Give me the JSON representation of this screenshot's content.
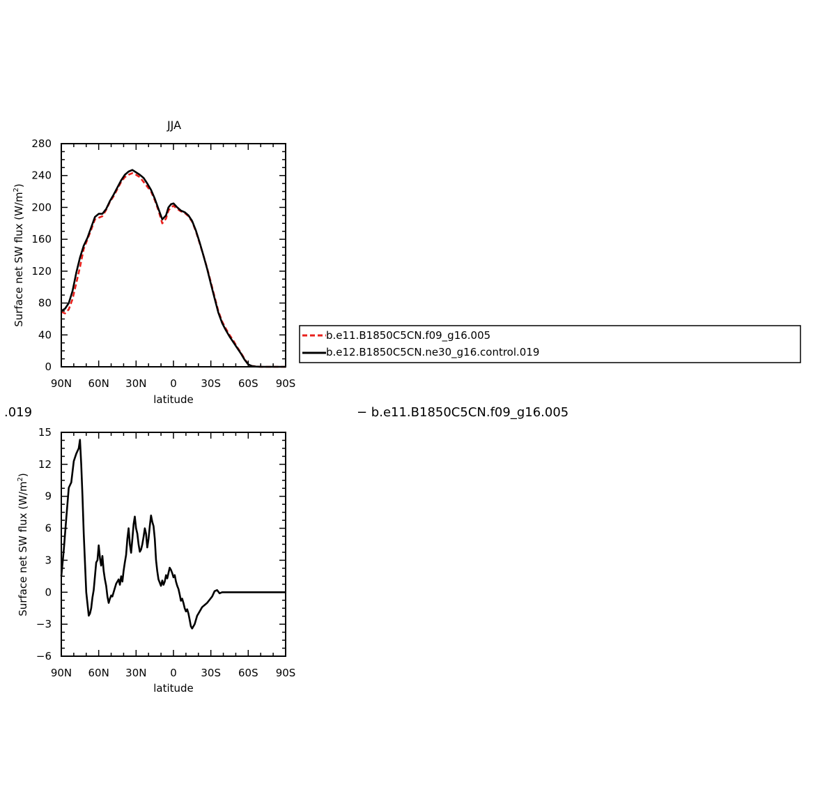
{
  "chart_data": [
    {
      "type": "line",
      "title": "JJA",
      "xlabel": "latitude",
      "ylabel_main": "Surface net SW flux (W/m",
      "ylabel_sup": "2",
      "ylabel_close": ")",
      "x_ticks": [
        "90N",
        "60N",
        "30N",
        "0",
        "30S",
        "60S",
        "90S"
      ],
      "xlim": [
        90,
        -90
      ],
      "ylim": [
        0,
        280
      ],
      "y_ticks": [
        0,
        40,
        80,
        120,
        160,
        200,
        240,
        280
      ],
      "legend": {
        "placement": "right",
        "entries": [
          "b.e11.B1850C5CN.f09_g16.005",
          "b.e12.B1850C5CN.ne30_g16.control.019"
        ]
      },
      "series": [
        {
          "name": "b.e11.B1850C5CN.f09_g16.005",
          "color": "#e8201c",
          "dash": "dashed",
          "x": [
            90,
            87,
            84,
            81,
            78,
            75,
            72,
            69,
            66,
            63,
            60,
            57,
            54,
            51,
            48,
            45,
            42,
            39,
            36,
            33,
            30,
            27,
            24,
            21,
            18,
            15,
            12,
            9,
            6,
            4,
            2,
            0,
            -3,
            -6,
            -9,
            -12,
            -15,
            -18,
            -21,
            -24,
            -27,
            -30,
            -33,
            -36,
            -39,
            -42,
            -45,
            -48,
            -51,
            -54,
            -57,
            -60,
            -63,
            -66,
            -70,
            -75,
            -80,
            -85,
            -90
          ],
          "y": [
            69,
            67,
            72,
            85,
            105,
            125,
            148,
            160,
            172,
            185,
            187,
            189,
            197,
            207,
            214,
            223,
            232,
            238,
            241,
            243,
            241,
            238,
            232,
            226,
            220,
            209,
            196,
            180,
            186,
            196,
            200,
            202,
            198,
            195,
            193,
            189,
            182,
            170,
            155,
            140,
            124,
            106,
            88,
            70,
            57,
            48,
            40,
            33,
            25,
            18,
            10,
            3,
            1,
            0.5,
            0,
            0,
            0,
            0,
            0
          ]
        },
        {
          "name": "b.e12.B1850C5CN.ne30_g16.control.019",
          "color": "#000000",
          "dash": "solid",
          "x": [
            90,
            87,
            84,
            81,
            78,
            75,
            72,
            69,
            66,
            63,
            60,
            57,
            54,
            51,
            48,
            45,
            42,
            39,
            36,
            33,
            30,
            27,
            24,
            21,
            18,
            15,
            12,
            9,
            6,
            4,
            2,
            0,
            -3,
            -6,
            -9,
            -12,
            -15,
            -18,
            -21,
            -24,
            -27,
            -30,
            -33,
            -36,
            -39,
            -42,
            -45,
            -48,
            -51,
            -54,
            -57,
            -60,
            -63,
            -66,
            -70,
            -75,
            -80,
            -85,
            -90
          ],
          "y": [
            70,
            73,
            80,
            95,
            118,
            137,
            152,
            162,
            175,
            188,
            192,
            192,
            198,
            208,
            216,
            225,
            234,
            241,
            245,
            247,
            244,
            241,
            237,
            230,
            222,
            211,
            198,
            185,
            190,
            200,
            204,
            205,
            200,
            196,
            194,
            190,
            183,
            171,
            156,
            140,
            123,
            104,
            86,
            68,
            55,
            46,
            38,
            31,
            24,
            17,
            9,
            3,
            1,
            0.3,
            0,
            0,
            0,
            0,
            0
          ]
        }
      ]
    },
    {
      "type": "line",
      "title_partial": ".019",
      "legend_partial": "− b.e11.B1850C5CN.f09_g16.005",
      "xlabel": "latitude",
      "ylabel_main": "Surface net SW flux (W/m",
      "ylabel_sup": "2",
      "ylabel_close": ")",
      "x_ticks": [
        "90N",
        "60N",
        "30N",
        "0",
        "30S",
        "60S",
        "90S"
      ],
      "xlim": [
        90,
        -90
      ],
      "ylim": [
        -6,
        15
      ],
      "y_ticks": [
        "−6",
        "−3",
        "0",
        "3",
        "6",
        "9",
        "12",
        "15"
      ],
      "series": [
        {
          "color": "#000000",
          "x": [
            90,
            88,
            86,
            84,
            82,
            80,
            78,
            76,
            75,
            74,
            73,
            72,
            70,
            68,
            67,
            66,
            65,
            64,
            63,
            62,
            61,
            60,
            59,
            58,
            57,
            56,
            55,
            54,
            53,
            52,
            51,
            50,
            49,
            48,
            46,
            44,
            43,
            42,
            41,
            40,
            39,
            38,
            37,
            36,
            35,
            34,
            33,
            32,
            31,
            30,
            29,
            28,
            27,
            26,
            25,
            24,
            23,
            22,
            21,
            20,
            19,
            18,
            17,
            16,
            15,
            14,
            13,
            12,
            11,
            10,
            9,
            8,
            7,
            6,
            5,
            4,
            3,
            2,
            1,
            0,
            -1,
            -2,
            -3,
            -4,
            -5,
            -6,
            -7,
            -8,
            -9,
            -10,
            -11,
            -12,
            -13,
            -14,
            -15,
            -16,
            -17,
            -18,
            -19,
            -20,
            -21,
            -22,
            -23,
            -25,
            -27,
            -29,
            -31,
            -33,
            -35,
            -37,
            -39,
            -41,
            -43,
            -45,
            -47,
            -49,
            -51,
            -53,
            -55,
            -57,
            -59,
            -61,
            -63,
            -65,
            -67,
            -69,
            -71,
            -75,
            -80,
            -85,
            -90
          ],
          "y": [
            1.5,
            4,
            7,
            9.8,
            10.3,
            12.3,
            13,
            13.5,
            14.3,
            12,
            9,
            5.5,
            0,
            -2.2,
            -2,
            -1.5,
            -0.5,
            0.2,
            1.5,
            2.8,
            3.0,
            4.4,
            3.2,
            2.5,
            3.4,
            2.0,
            1.2,
            0.6,
            -0.4,
            -1.0,
            -0.6,
            -0.3,
            -0.4,
            0,
            0.8,
            1.2,
            0.7,
            1.5,
            1.0,
            2.0,
            2.8,
            3.5,
            5.0,
            6.0,
            4.5,
            3.7,
            5.0,
            6.4,
            7.1,
            6.0,
            5.5,
            4.5,
            3.8,
            4.0,
            4.5,
            5.2,
            6.0,
            5.5,
            4.2,
            5.0,
            6.2,
            7.2,
            6.6,
            6.2,
            5.0,
            3.0,
            2.0,
            1.2,
            0.9,
            0.6,
            1.1,
            0.7,
            1.0,
            1.6,
            1.3,
            1.8,
            2.3,
            2.1,
            1.8,
            1.4,
            1.6,
            1.0,
            0.6,
            0.3,
            -0.2,
            -0.8,
            -0.6,
            -1.0,
            -1.5,
            -1.8,
            -1.6,
            -2.0,
            -2.6,
            -3.2,
            -3.4,
            -3.2,
            -3.0,
            -2.6,
            -2.2,
            -2.0,
            -1.8,
            -1.6,
            -1.4,
            -1.2,
            -1.0,
            -0.7,
            -0.4,
            0.1,
            0.2,
            -0.1,
            0.0,
            0.0,
            0.0,
            0.0,
            0.0,
            0.0,
            0.0,
            0.0,
            0.0,
            0.0,
            0.0,
            0.0,
            0.0,
            0.0,
            0.0,
            0.0,
            0.0,
            0.0,
            0.0,
            0.0,
            0.0
          ]
        }
      ]
    }
  ]
}
